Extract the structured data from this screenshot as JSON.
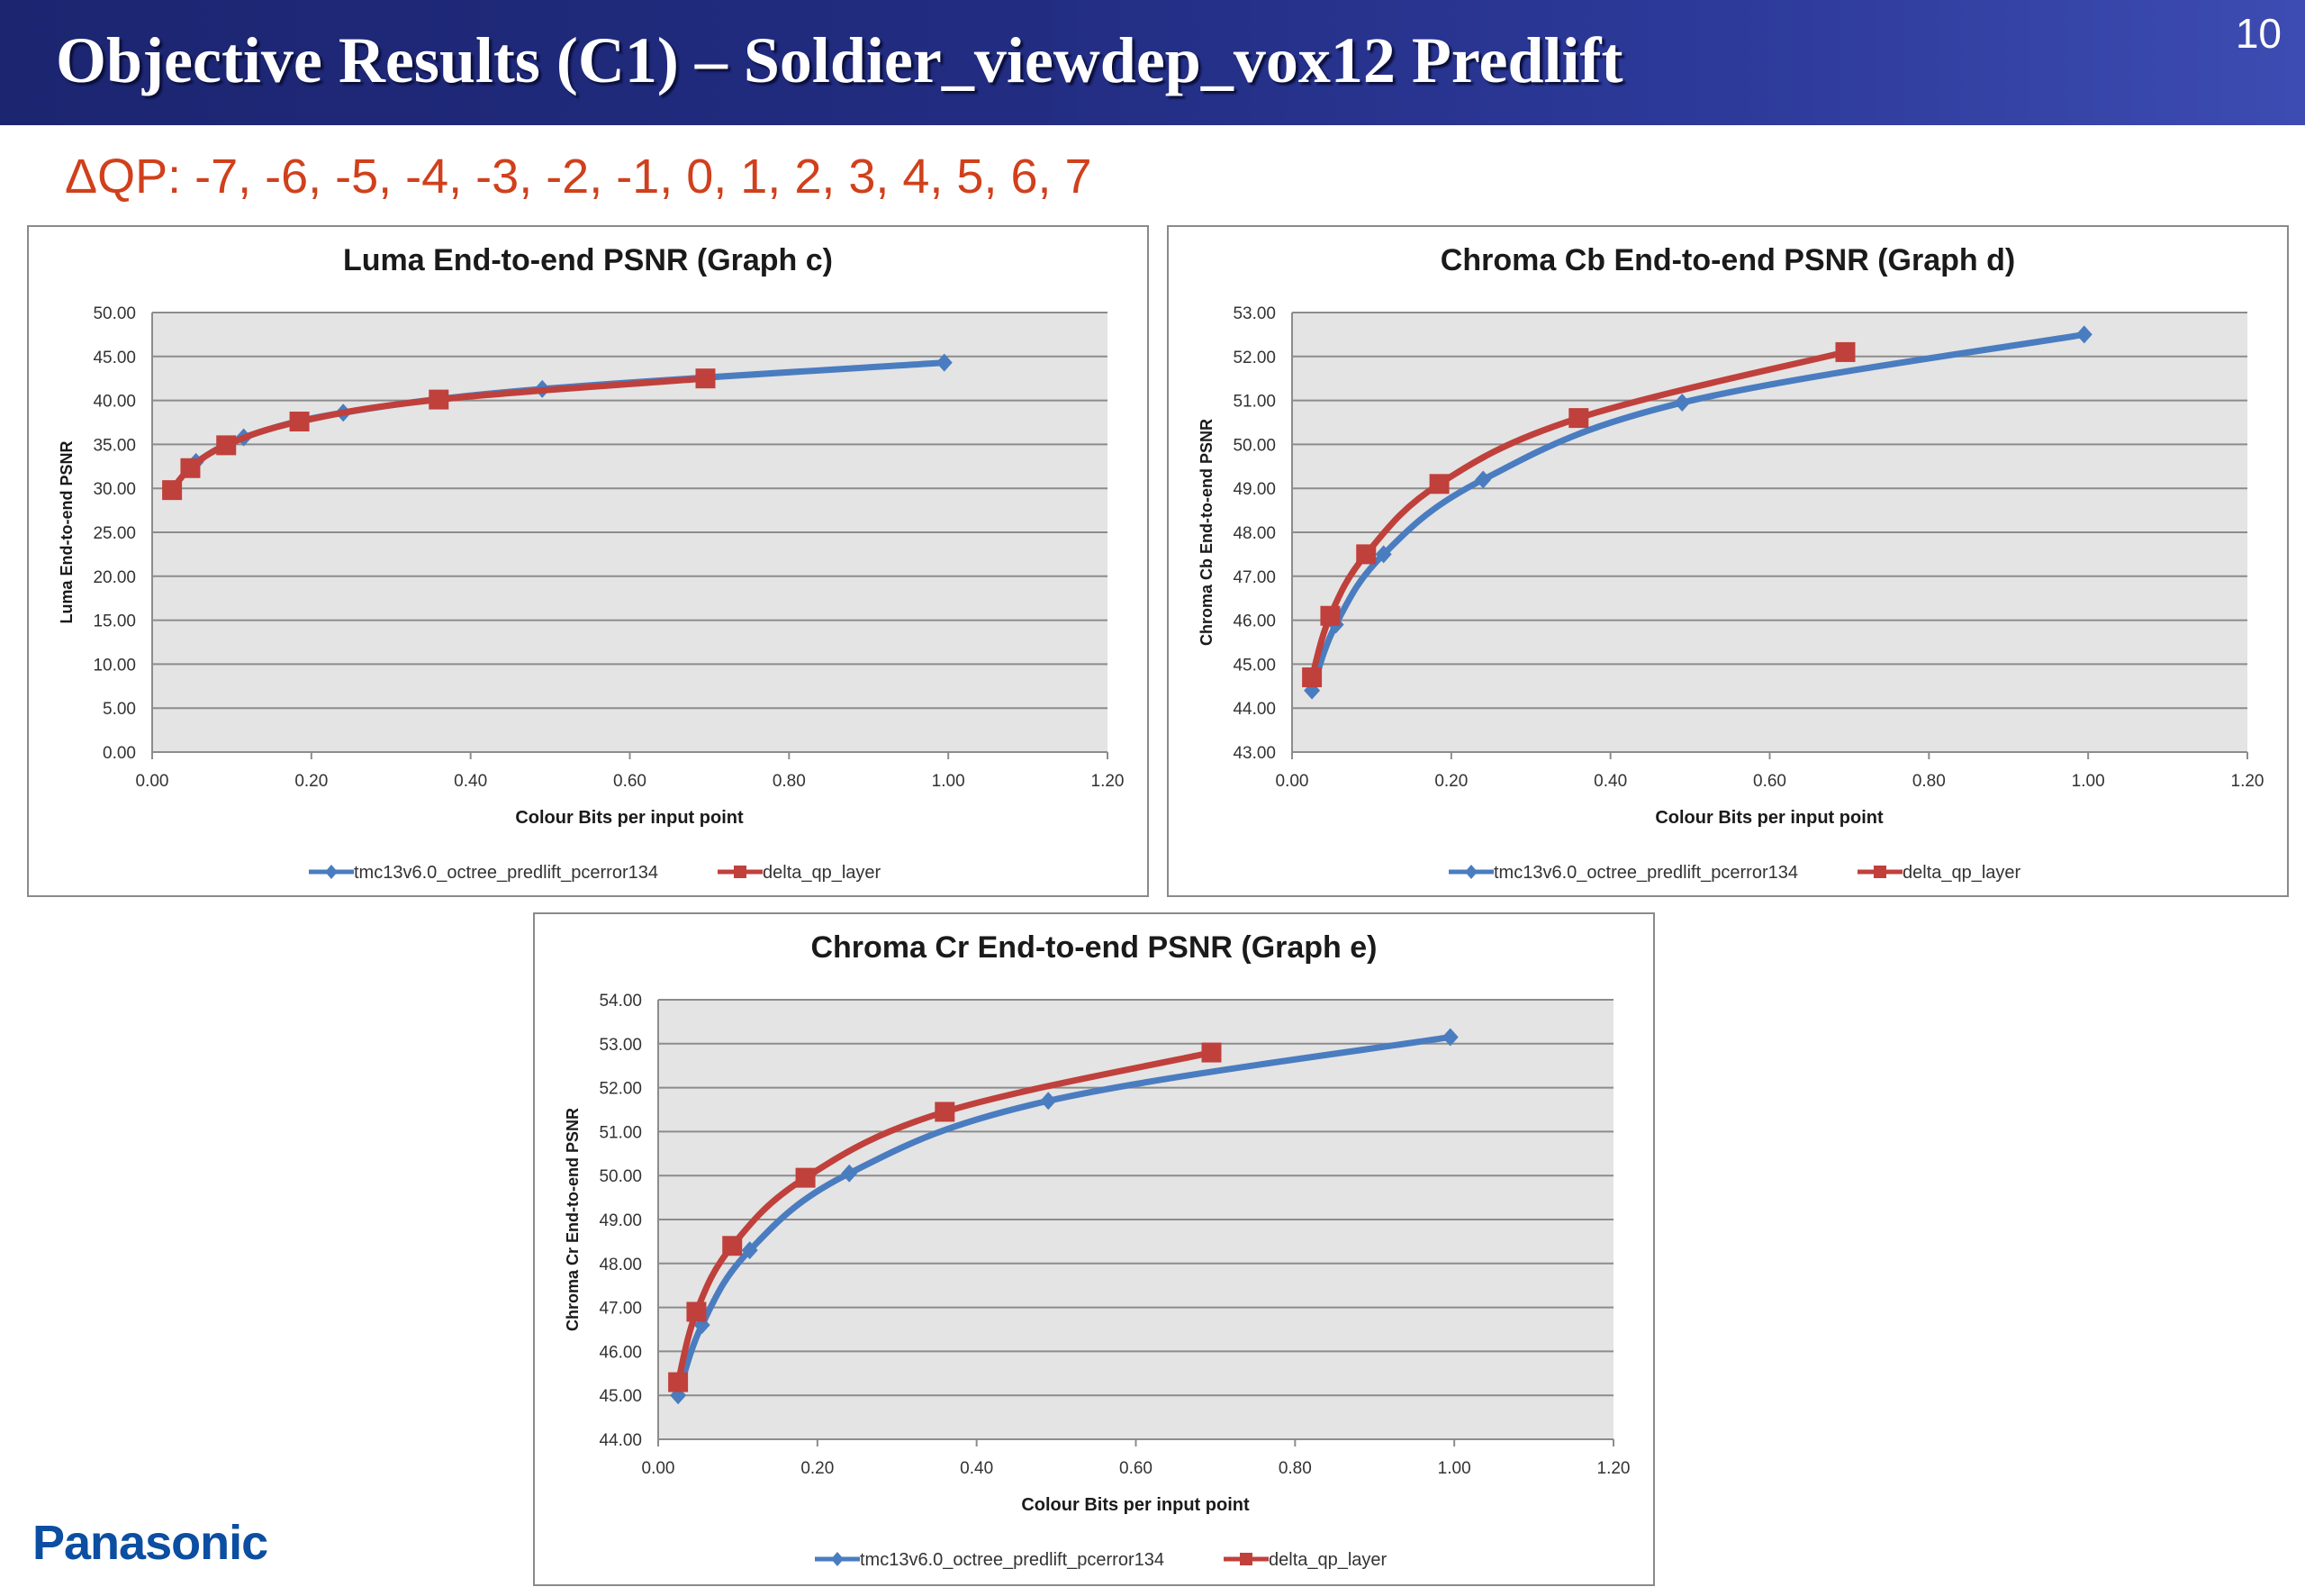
{
  "slide": {
    "title": "Objective Results (C1) – Soldier_viewdep_vox12 Predlift",
    "number": "10",
    "dqp_text": "ΔQP: -7, -6, -5, -4, -3, -2, -1, 0, 1, 2, 3, 4, 5, 6, 7",
    "logo": "Panasonic"
  },
  "colors": {
    "title_bar": "#222d82",
    "dqp_text": "#d0401c",
    "series_blue": "#4a7cc0",
    "series_red": "#c0403c",
    "plot_bg": "#e4e4e4",
    "logo": "#0b4ea2"
  },
  "chart_data": [
    {
      "type": "line",
      "title": "Luma End-to-end PSNR (Graph c)",
      "xlabel": "Colour  Bits per input point",
      "ylabel": "Luma End-to-end PSNR",
      "xlim": [
        0,
        1.2
      ],
      "ylim": [
        0,
        50
      ],
      "xticks": [
        "0.00",
        "0.20",
        "0.40",
        "0.60",
        "0.80",
        "1.00",
        "1.20"
      ],
      "yticks": [
        "0.00",
        "5.00",
        "10.00",
        "15.00",
        "20.00",
        "25.00",
        "30.00",
        "35.00",
        "40.00",
        "45.00",
        "50.00"
      ],
      "grid": true,
      "legend": "bottom",
      "series": [
        {
          "name": "tmc13v6.0_octree_predlift_pcerror134",
          "color": "#4a7cc0",
          "marker": "diamond",
          "x": [
            0.055,
            0.115,
            0.24,
            0.49,
            0.995
          ],
          "y": [
            33.0,
            35.8,
            38.6,
            41.3,
            44.3
          ]
        },
        {
          "name": "delta_qp_layer",
          "color": "#c0403c",
          "marker": "square",
          "x": [
            0.025,
            0.048,
            0.093,
            0.185,
            0.36,
            0.695
          ],
          "y": [
            29.8,
            32.3,
            34.9,
            37.6,
            40.1,
            42.5
          ]
        }
      ]
    },
    {
      "type": "line",
      "title": "Chroma Cb End-to-end PSNR (Graph d)",
      "xlabel": "Colour  Bits per input point",
      "ylabel": "Chroma Cb End-to-end PSNR",
      "xlim": [
        0,
        1.2
      ],
      "ylim": [
        43,
        53
      ],
      "xticks": [
        "0.00",
        "0.20",
        "0.40",
        "0.60",
        "0.80",
        "1.00",
        "1.20"
      ],
      "yticks": [
        "43.00",
        "44.00",
        "45.00",
        "46.00",
        "47.00",
        "48.00",
        "49.00",
        "50.00",
        "51.00",
        "52.00",
        "53.00"
      ],
      "grid": true,
      "legend": "bottom",
      "series": [
        {
          "name": "tmc13v6.0_octree_predlift_pcerror134",
          "color": "#4a7cc0",
          "marker": "diamond",
          "x": [
            0.025,
            0.055,
            0.115,
            0.24,
            0.49,
            0.995
          ],
          "y": [
            44.4,
            45.9,
            47.5,
            49.2,
            50.95,
            52.5
          ]
        },
        {
          "name": "delta_qp_layer",
          "color": "#c0403c",
          "marker": "square",
          "x": [
            0.025,
            0.048,
            0.093,
            0.185,
            0.36,
            0.695
          ],
          "y": [
            44.7,
            46.1,
            47.5,
            49.1,
            50.6,
            52.1
          ]
        }
      ]
    },
    {
      "type": "line",
      "title": "Chroma Cr End-to-end PSNR (Graph e)",
      "xlabel": "Colour  Bits per input point",
      "ylabel": "Chroma Cr End-to-end PSNR",
      "xlim": [
        0,
        1.2
      ],
      "ylim": [
        44,
        54
      ],
      "xticks": [
        "0.00",
        "0.20",
        "0.40",
        "0.60",
        "0.80",
        "1.00",
        "1.20"
      ],
      "yticks": [
        "44.00",
        "45.00",
        "46.00",
        "47.00",
        "48.00",
        "49.00",
        "50.00",
        "51.00",
        "52.00",
        "53.00",
        "54.00"
      ],
      "grid": true,
      "legend": "bottom",
      "series": [
        {
          "name": "tmc13v6.0_octree_predlift_pcerror134",
          "color": "#4a7cc0",
          "marker": "diamond",
          "x": [
            0.025,
            0.055,
            0.115,
            0.24,
            0.49,
            0.995
          ],
          "y": [
            45.0,
            46.6,
            48.3,
            50.05,
            51.7,
            53.15
          ]
        },
        {
          "name": "delta_qp_layer",
          "color": "#c0403c",
          "marker": "square",
          "x": [
            0.025,
            0.048,
            0.093,
            0.185,
            0.36,
            0.695
          ],
          "y": [
            45.3,
            46.9,
            48.4,
            49.95,
            51.45,
            52.8
          ]
        }
      ]
    }
  ]
}
